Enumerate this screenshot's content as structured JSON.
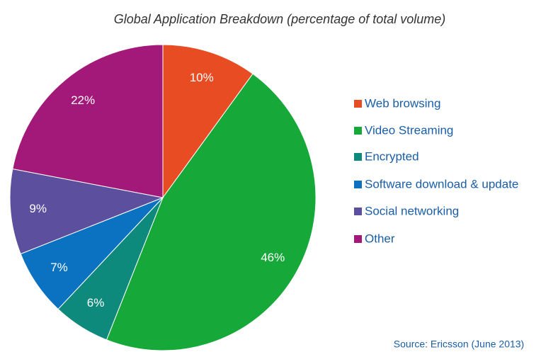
{
  "chart_data": {
    "type": "pie",
    "title": "Global Application Breakdown (percentage of total volume)",
    "categories": [
      "Web browsing",
      "Video Streaming",
      "Encrypted",
      "Software download & update",
      "Social networking",
      "Other"
    ],
    "values": [
      10,
      46,
      6,
      7,
      9,
      22
    ],
    "value_labels": [
      "10%",
      "46%",
      "6%",
      "7%",
      "9%",
      "22%"
    ],
    "colors": [
      "#e84c22",
      "#17a83a",
      "#0e8a7c",
      "#0a72c0",
      "#5b4f9e",
      "#a3197a"
    ],
    "source": "Source: Ericsson (June 2013)"
  }
}
